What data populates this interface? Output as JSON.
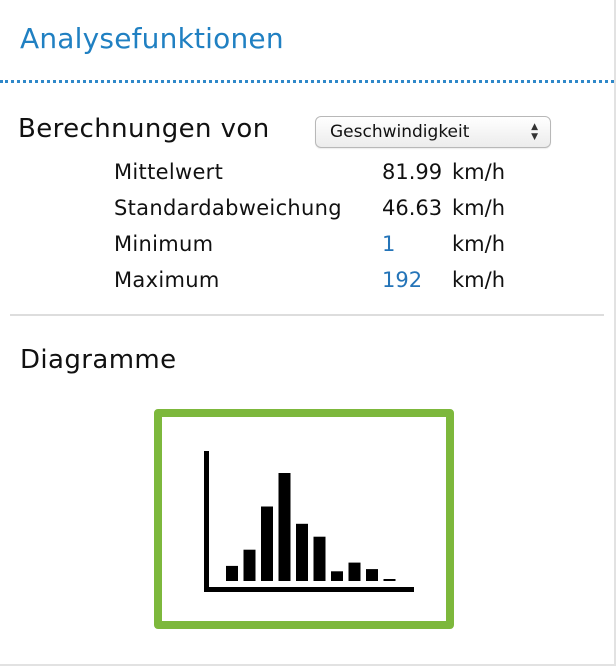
{
  "header": {
    "title": "Analysefunktionen"
  },
  "calculations": {
    "label": "Berechnungen von",
    "select_value": "Geschwindigkeit",
    "select_arrows": "▲▼",
    "stats": [
      {
        "label": "Mittelwert",
        "value": "81.99",
        "unit": "km/h",
        "is_link": false
      },
      {
        "label": "Standardabweichung",
        "value": "46.63",
        "unit": "km/h",
        "is_link": false
      },
      {
        "label": "Minimum",
        "value": "1",
        "unit": "km/h",
        "is_link": true
      },
      {
        "label": "Maximum",
        "value": "192",
        "unit": "km/h",
        "is_link": true
      }
    ]
  },
  "diagrams": {
    "title": "Diagramme",
    "histogram_icon": {
      "icon_name": "histogram-icon",
      "bar_heights": [
        0.14,
        0.29,
        0.69,
        1.0,
        0.53,
        0.41,
        0.09,
        0.17,
        0.11,
        0.01
      ],
      "frame_color": "#7db83c",
      "bar_color": "#000000"
    }
  },
  "colors": {
    "accent": "#2080c2",
    "link": "#2474b8",
    "tile_border": "#7db83c"
  }
}
